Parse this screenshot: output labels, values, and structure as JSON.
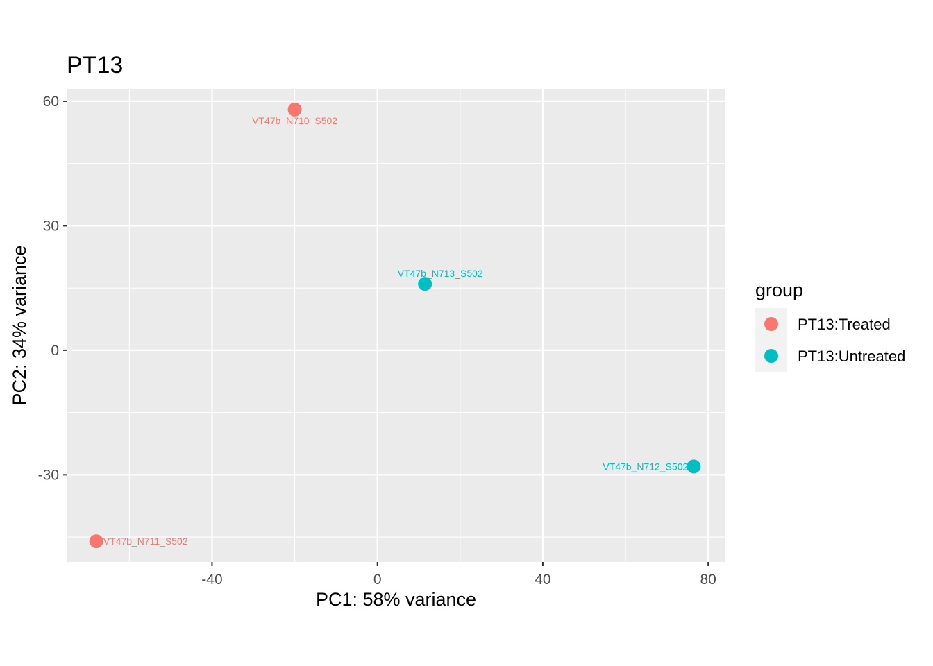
{
  "chart_data": {
    "type": "scatter",
    "title": "PT13",
    "xlabel": "PC1: 58% variance",
    "ylabel": "PC2: 34% variance",
    "xlim": [
      -75,
      84
    ],
    "ylim": [
      -51,
      63
    ],
    "x_ticks": [
      -40,
      0,
      40,
      80
    ],
    "y_ticks": [
      -30,
      0,
      30,
      60
    ],
    "x_tick_labels": [
      "-40",
      "0",
      "40",
      "80"
    ],
    "y_tick_labels": [
      "-30",
      "0",
      "30",
      "60"
    ],
    "grid": true,
    "legend": {
      "title": "group",
      "placement": "right",
      "entries": [
        {
          "label": "PT13:Treated",
          "color": "#F8766D"
        },
        {
          "label": "PT13:Untreated",
          "color": "#00BFC4"
        }
      ]
    },
    "points": [
      {
        "label": "VT47b_N710_S502",
        "x": -20,
        "y": 58,
        "group": "PT13:Treated",
        "label_pos": "below"
      },
      {
        "label": "VT47b_N713_S502",
        "x": 11.5,
        "y": 16,
        "group": "PT13:Untreated",
        "label_pos": "above"
      },
      {
        "label": "VT47b_N712_S502",
        "x": 76.5,
        "y": -28,
        "group": "PT13:Untreated",
        "label_pos": "left"
      },
      {
        "label": "VT47b_N711_S502",
        "x": -68,
        "y": -46,
        "group": "PT13:Treated",
        "label_pos": "right"
      }
    ]
  }
}
